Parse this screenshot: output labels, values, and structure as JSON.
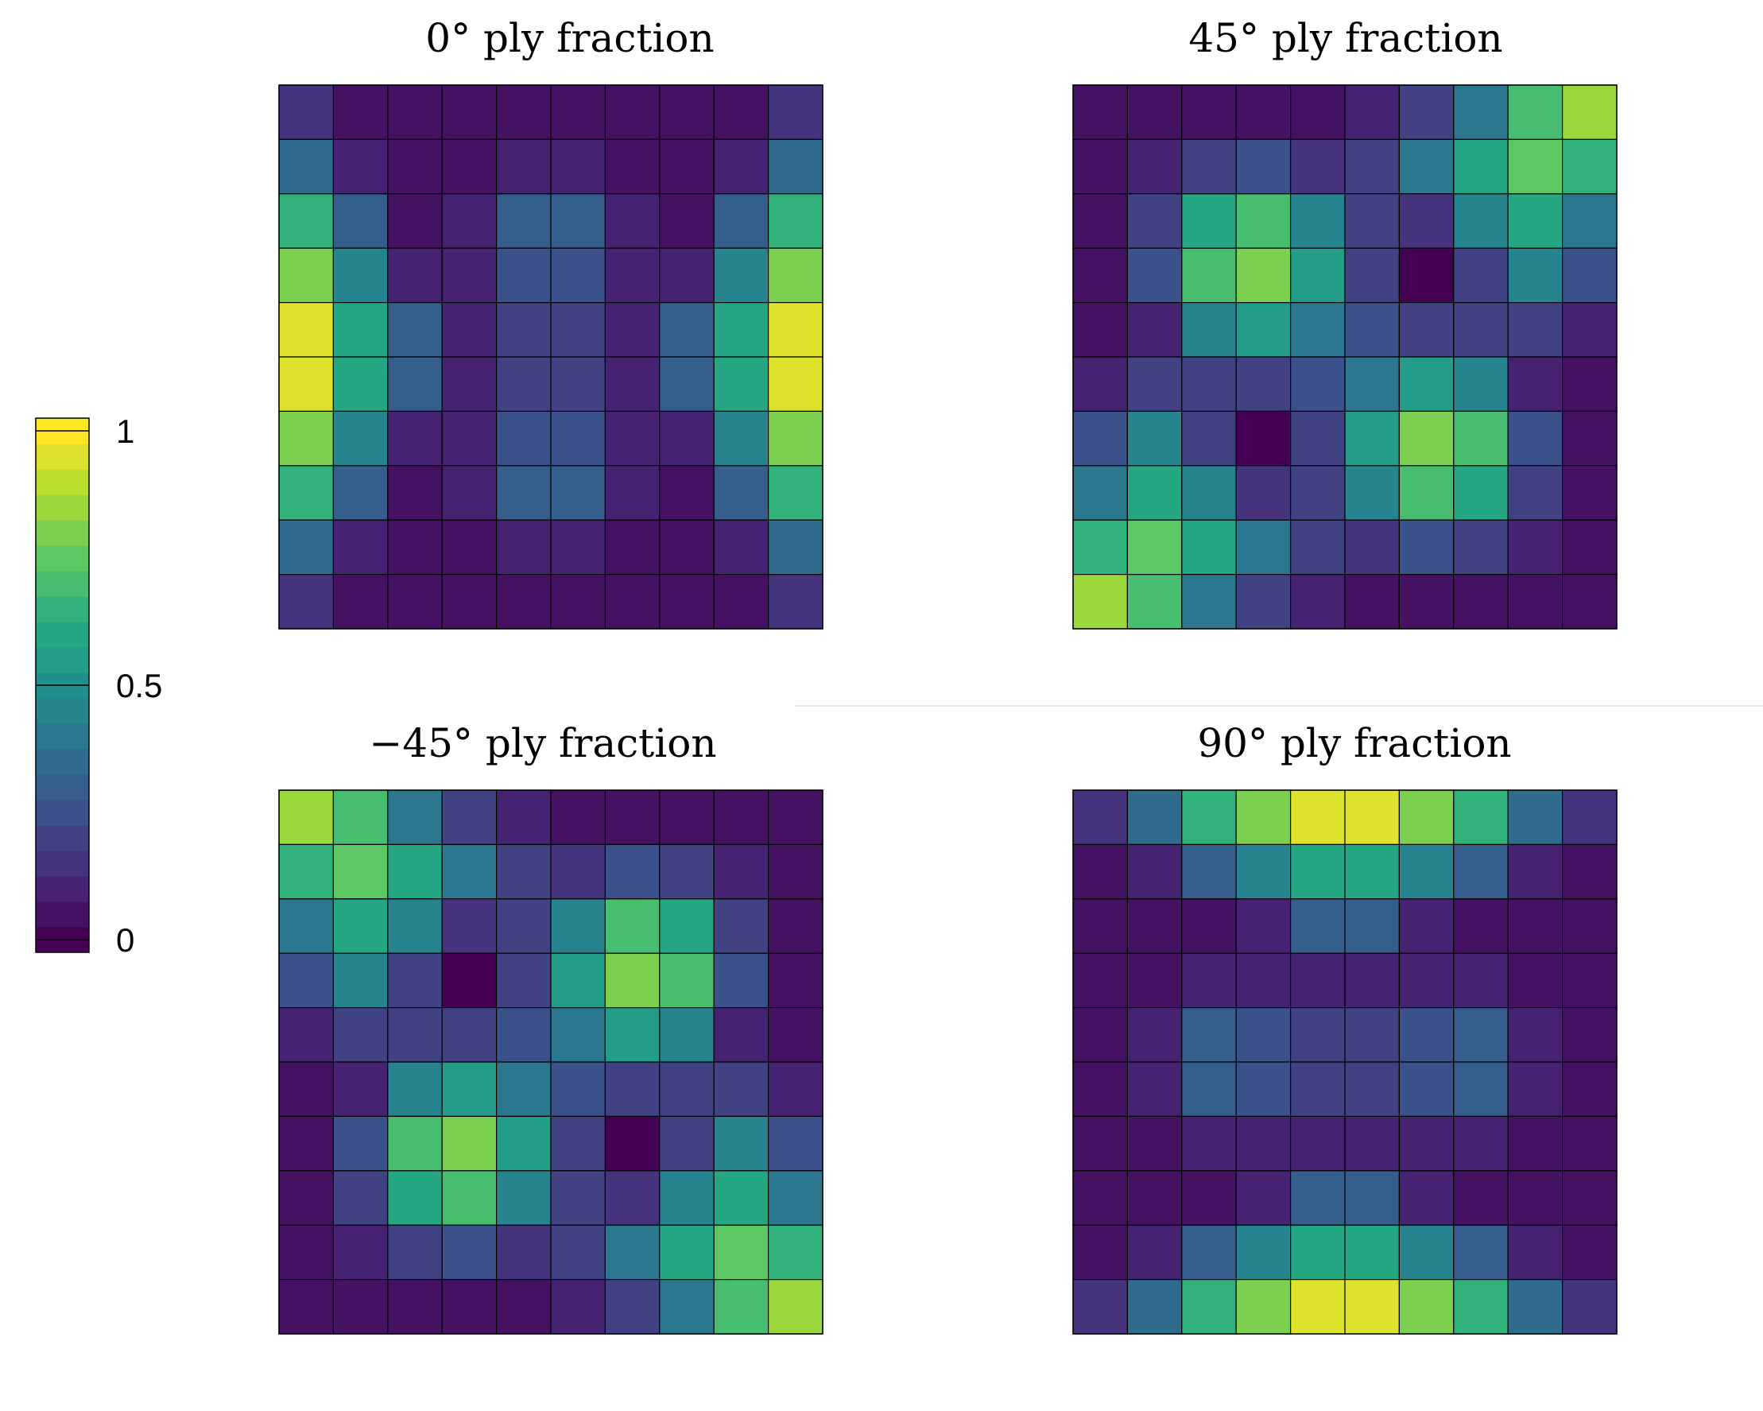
{
  "colorbar": {
    "ticks": [
      {
        "value": 0,
        "label": "0"
      },
      {
        "value": 0.5,
        "label": "0.5"
      },
      {
        "value": 1,
        "label": "1"
      }
    ],
    "levels": 21
  },
  "chart_data": [
    {
      "type": "heatmap",
      "title": "0° ply fraction",
      "zlim": [
        0,
        1
      ],
      "values": [
        [
          0.13,
          0.06,
          0.04,
          0.03,
          0.04,
          0.04,
          0.04,
          0.04,
          0.06,
          0.13
        ],
        [
          0.37,
          0.11,
          0.03,
          0.03,
          0.11,
          0.11,
          0.03,
          0.03,
          0.11,
          0.37
        ],
        [
          0.64,
          0.28,
          0.03,
          0.09,
          0.3,
          0.3,
          0.09,
          0.03,
          0.28,
          0.64
        ],
        [
          0.82,
          0.46,
          0.08,
          0.12,
          0.24,
          0.24,
          0.12,
          0.08,
          0.46,
          0.82
        ],
        [
          0.93,
          0.6,
          0.29,
          0.11,
          0.22,
          0.22,
          0.11,
          0.29,
          0.6,
          0.93
        ],
        [
          0.93,
          0.6,
          0.29,
          0.11,
          0.22,
          0.22,
          0.11,
          0.29,
          0.6,
          0.93
        ],
        [
          0.82,
          0.46,
          0.08,
          0.12,
          0.24,
          0.24,
          0.12,
          0.08,
          0.46,
          0.82
        ],
        [
          0.64,
          0.28,
          0.03,
          0.09,
          0.3,
          0.3,
          0.09,
          0.03,
          0.28,
          0.64
        ],
        [
          0.37,
          0.11,
          0.03,
          0.03,
          0.11,
          0.11,
          0.03,
          0.03,
          0.11,
          0.37
        ],
        [
          0.13,
          0.06,
          0.04,
          0.03,
          0.04,
          0.04,
          0.04,
          0.04,
          0.06,
          0.13
        ]
      ]
    },
    {
      "type": "heatmap",
      "title": "45° ply fraction",
      "zlim": [
        0,
        1
      ],
      "values": [
        [
          0.05,
          0.04,
          0.03,
          0.03,
          0.04,
          0.12,
          0.22,
          0.4,
          0.68,
          0.86
        ],
        [
          0.04,
          0.08,
          0.18,
          0.27,
          0.16,
          0.19,
          0.42,
          0.62,
          0.74,
          0.66
        ],
        [
          0.04,
          0.19,
          0.58,
          0.68,
          0.47,
          0.2,
          0.16,
          0.44,
          0.62,
          0.42
        ],
        [
          0.03,
          0.27,
          0.68,
          0.82,
          0.53,
          0.2,
          0.02,
          0.18,
          0.43,
          0.23
        ],
        [
          0.04,
          0.12,
          0.45,
          0.53,
          0.42,
          0.26,
          0.18,
          0.19,
          0.18,
          0.11
        ],
        [
          0.11,
          0.18,
          0.2,
          0.19,
          0.26,
          0.42,
          0.53,
          0.45,
          0.12,
          0.04
        ],
        [
          0.23,
          0.43,
          0.18,
          0.02,
          0.2,
          0.53,
          0.82,
          0.68,
          0.27,
          0.03
        ],
        [
          0.42,
          0.62,
          0.44,
          0.16,
          0.2,
          0.47,
          0.68,
          0.58,
          0.19,
          0.04
        ],
        [
          0.66,
          0.74,
          0.62,
          0.42,
          0.19,
          0.16,
          0.27,
          0.18,
          0.08,
          0.04
        ],
        [
          0.86,
          0.68,
          0.4,
          0.22,
          0.12,
          0.04,
          0.03,
          0.03,
          0.04,
          0.05
        ]
      ]
    },
    {
      "type": "heatmap",
      "title": "−45° ply fraction",
      "zlim": [
        0,
        1
      ],
      "values": [
        [
          0.86,
          0.68,
          0.4,
          0.22,
          0.12,
          0.04,
          0.03,
          0.03,
          0.04,
          0.05
        ],
        [
          0.66,
          0.74,
          0.62,
          0.42,
          0.19,
          0.16,
          0.27,
          0.18,
          0.08,
          0.04
        ],
        [
          0.42,
          0.62,
          0.44,
          0.16,
          0.2,
          0.47,
          0.68,
          0.58,
          0.19,
          0.04
        ],
        [
          0.23,
          0.43,
          0.18,
          0.02,
          0.2,
          0.53,
          0.82,
          0.68,
          0.27,
          0.03
        ],
        [
          0.11,
          0.18,
          0.2,
          0.19,
          0.26,
          0.42,
          0.53,
          0.45,
          0.12,
          0.04
        ],
        [
          0.04,
          0.12,
          0.45,
          0.53,
          0.42,
          0.26,
          0.18,
          0.19,
          0.18,
          0.11
        ],
        [
          0.03,
          0.27,
          0.68,
          0.82,
          0.53,
          0.2,
          0.02,
          0.18,
          0.43,
          0.23
        ],
        [
          0.04,
          0.19,
          0.58,
          0.68,
          0.47,
          0.2,
          0.16,
          0.44,
          0.62,
          0.42
        ],
        [
          0.04,
          0.08,
          0.18,
          0.27,
          0.16,
          0.19,
          0.42,
          0.62,
          0.74,
          0.66
        ],
        [
          0.05,
          0.04,
          0.03,
          0.03,
          0.04,
          0.12,
          0.22,
          0.4,
          0.68,
          0.86
        ]
      ]
    },
    {
      "type": "heatmap",
      "title": "90° ply fraction",
      "zlim": [
        0,
        1
      ],
      "values": [
        [
          0.13,
          0.37,
          0.64,
          0.82,
          0.93,
          0.93,
          0.82,
          0.64,
          0.37,
          0.13
        ],
        [
          0.06,
          0.11,
          0.28,
          0.46,
          0.6,
          0.6,
          0.46,
          0.28,
          0.11,
          0.06
        ],
        [
          0.04,
          0.03,
          0.03,
          0.08,
          0.29,
          0.29,
          0.08,
          0.03,
          0.03,
          0.04
        ],
        [
          0.03,
          0.03,
          0.09,
          0.12,
          0.11,
          0.11,
          0.12,
          0.09,
          0.03,
          0.03
        ],
        [
          0.04,
          0.11,
          0.3,
          0.24,
          0.22,
          0.22,
          0.24,
          0.3,
          0.11,
          0.04
        ],
        [
          0.04,
          0.11,
          0.3,
          0.24,
          0.22,
          0.22,
          0.24,
          0.3,
          0.11,
          0.04
        ],
        [
          0.04,
          0.03,
          0.09,
          0.12,
          0.11,
          0.11,
          0.12,
          0.09,
          0.03,
          0.04
        ],
        [
          0.04,
          0.03,
          0.03,
          0.08,
          0.29,
          0.29,
          0.08,
          0.03,
          0.03,
          0.04
        ],
        [
          0.06,
          0.11,
          0.28,
          0.46,
          0.6,
          0.6,
          0.46,
          0.28,
          0.11,
          0.06
        ],
        [
          0.13,
          0.37,
          0.64,
          0.82,
          0.93,
          0.93,
          0.82,
          0.64,
          0.37,
          0.13
        ]
      ]
    }
  ]
}
